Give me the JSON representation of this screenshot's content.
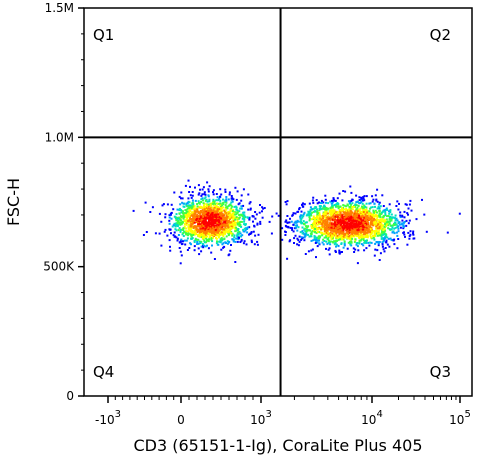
{
  "chart_data": {
    "type": "scatter",
    "title": "",
    "xlabel": "CD3 (65151-1-Ig), CoraLite Plus 405",
    "ylabel": "FSC-H",
    "x_scale": "biexponential",
    "x_ticks": [
      {
        "value": -1000,
        "base": "-10",
        "exp": "3"
      },
      {
        "value": 0,
        "base": "0",
        "exp": ""
      },
      {
        "value": 1000,
        "base": "10",
        "exp": "3"
      },
      {
        "value": 10000,
        "base": "10",
        "exp": "4"
      },
      {
        "value": 100000,
        "base": "10",
        "exp": "5"
      }
    ],
    "y_ticks": [
      {
        "value": 0,
        "label": "0"
      },
      {
        "value": 500000,
        "label": "500K"
      },
      {
        "value": 1000000,
        "label": "1.0M"
      },
      {
        "value": 1500000,
        "label": "1.5M"
      }
    ],
    "ylim": [
      0,
      1500000
    ],
    "gates": {
      "x": 1500,
      "y": 1000000
    },
    "quadrants": [
      {
        "name": "Q1",
        "position": "top-left"
      },
      {
        "name": "Q2",
        "position": "top-right"
      },
      {
        "name": "Q4",
        "position": "bottom-left"
      },
      {
        "name": "Q3",
        "position": "bottom-right"
      }
    ],
    "populations": [
      {
        "center_x": 350,
        "center_y": 680000,
        "events": 1600
      },
      {
        "center_x": 6000,
        "center_y": 670000,
        "events": 2000
      }
    ],
    "density_colors": [
      "#0000ff",
      "#00a0ff",
      "#00e0c0",
      "#40ff40",
      "#ffff00",
      "#ff8000",
      "#ff0000"
    ]
  }
}
